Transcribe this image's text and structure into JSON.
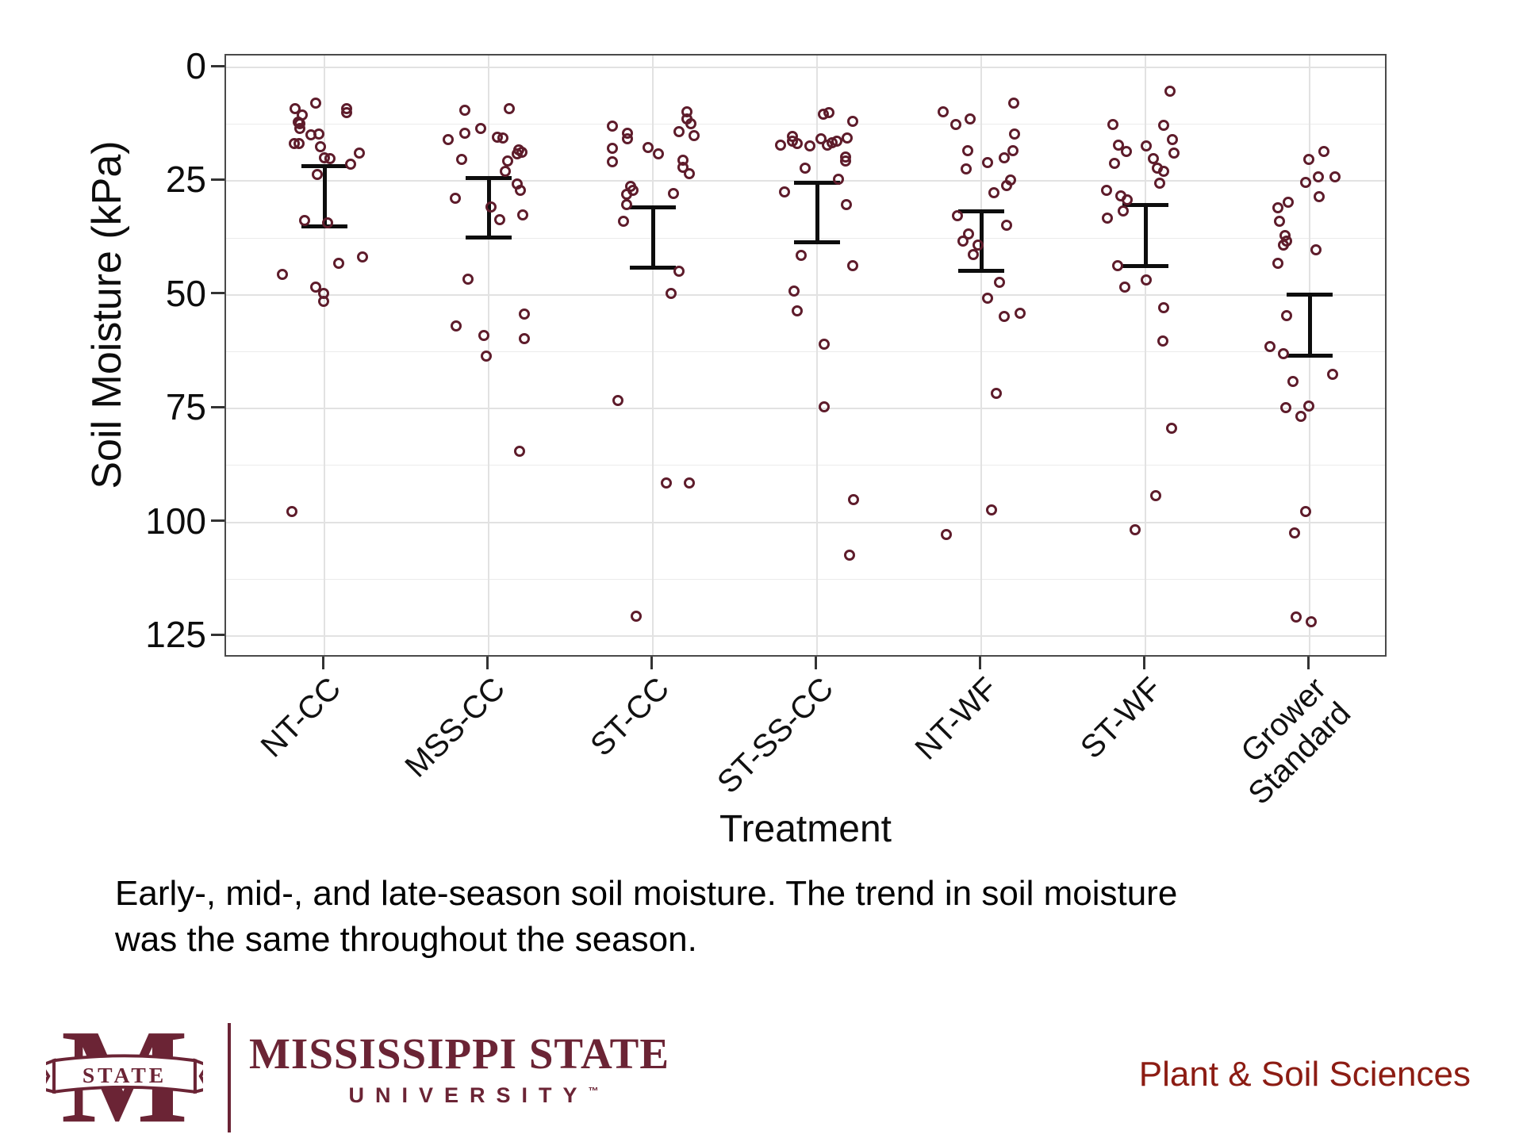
{
  "chart_data": {
    "type": "scatter",
    "title": "",
    "xlabel": "Treatment",
    "ylabel": "Soil Moisture (kPa)",
    "y_axis": {
      "ticks": [
        0,
        25,
        50,
        75,
        100,
        125
      ],
      "minor_step": 12.5,
      "range": [
        0,
        130
      ],
      "reversed": true,
      "unit": "kPa"
    },
    "grid": {
      "major_color": "#e2e2e2",
      "minor_color": "#ebebeb"
    },
    "point_color": "#5e1c2b",
    "errorbar_color": "#0d0d0d",
    "jitter_note": "points stored as [x_offset_px_from_column_center, soil_moisture_kPa]",
    "treatments": [
      {
        "label": "NT-CC",
        "errorbar": {
          "low": 21.7,
          "high": 35.0
        },
        "points": [
          [
            -11,
            7.8
          ],
          [
            -37,
            9.0
          ],
          [
            28,
            9.0
          ],
          [
            28,
            10.0
          ],
          [
            -28,
            10.4
          ],
          [
            -33,
            12.0
          ],
          [
            -31,
            12.3
          ],
          [
            -31,
            13.4
          ],
          [
            -7,
            14.6
          ],
          [
            -17,
            14.8
          ],
          [
            -38,
            16.7
          ],
          [
            -32,
            16.7
          ],
          [
            -5,
            17.4
          ],
          [
            44,
            18.9
          ],
          [
            0,
            19.8
          ],
          [
            7,
            20.0
          ],
          [
            33,
            21.2
          ],
          [
            -9,
            23.6
          ],
          [
            -25,
            33.7
          ],
          [
            4,
            34.1
          ],
          [
            48,
            41.6
          ],
          [
            18,
            43.0
          ],
          [
            -53,
            45.5
          ],
          [
            -11,
            48.3
          ],
          [
            -1,
            49.7
          ],
          [
            -1,
            51.5
          ],
          [
            -41,
            97.7
          ]
        ]
      },
      {
        "label": "MSS-CC",
        "errorbar": {
          "low": 24.4,
          "high": 37.4
        },
        "points": [
          [
            26,
            9.0
          ],
          [
            -30,
            9.5
          ],
          [
            -10,
            13.4
          ],
          [
            -30,
            14.5
          ],
          [
            11,
            15.3
          ],
          [
            18,
            15.6
          ],
          [
            -51,
            15.8
          ],
          [
            38,
            18.1
          ],
          [
            42,
            18.6
          ],
          [
            36,
            19.0
          ],
          [
            -34,
            20.3
          ],
          [
            24,
            20.5
          ],
          [
            21,
            22.9
          ],
          [
            36,
            25.7
          ],
          [
            40,
            27.0
          ],
          [
            -42,
            28.7
          ],
          [
            3,
            30.6
          ],
          [
            43,
            32.5
          ],
          [
            14,
            33.5
          ],
          [
            -26,
            46.5
          ],
          [
            45,
            54.3
          ],
          [
            -41,
            56.9
          ],
          [
            -6,
            59.0
          ],
          [
            45,
            59.7
          ],
          [
            -3,
            63.5
          ],
          [
            39,
            84.3
          ]
        ]
      },
      {
        "label": "ST-CC",
        "errorbar": {
          "low": 30.8,
          "high": 44.1
        },
        "points": [
          [
            43,
            9.7
          ],
          [
            43,
            11.4
          ],
          [
            48,
            12.4
          ],
          [
            -51,
            12.9
          ],
          [
            33,
            14.1
          ],
          [
            -32,
            14.5
          ],
          [
            52,
            15.0
          ],
          [
            -32,
            15.7
          ],
          [
            -6,
            17.6
          ],
          [
            -51,
            17.8
          ],
          [
            7,
            19.0
          ],
          [
            38,
            20.4
          ],
          [
            -51,
            20.7
          ],
          [
            38,
            21.9
          ],
          [
            46,
            23.3
          ],
          [
            -28,
            26.2
          ],
          [
            -25,
            27.0
          ],
          [
            26,
            27.8
          ],
          [
            -33,
            27.9
          ],
          [
            -33,
            30.2
          ],
          [
            -37,
            33.8
          ],
          [
            33,
            44.8
          ],
          [
            23,
            49.7
          ],
          [
            -44,
            73.3
          ],
          [
            17,
            91.4
          ],
          [
            46,
            91.4
          ],
          [
            -21,
            120.7
          ]
        ]
      },
      {
        "label": "ST-SS-CC",
        "errorbar": {
          "low": 25.4,
          "high": 38.4
        },
        "points": [
          [
            15,
            9.9
          ],
          [
            8,
            10.2
          ],
          [
            45,
            11.9
          ],
          [
            -31,
            15.1
          ],
          [
            38,
            15.5
          ],
          [
            5,
            15.7
          ],
          [
            -31,
            16.2
          ],
          [
            25,
            16.2
          ],
          [
            19,
            16.6
          ],
          [
            -25,
            16.8
          ],
          [
            -46,
            17.1
          ],
          [
            13,
            17.1
          ],
          [
            -9,
            17.2
          ],
          [
            36,
            19.7
          ],
          [
            36,
            20.5
          ],
          [
            -15,
            22.2
          ],
          [
            27,
            24.6
          ],
          [
            -41,
            27.4
          ],
          [
            37,
            30.2
          ],
          [
            -20,
            41.4
          ],
          [
            45,
            43.5
          ],
          [
            -29,
            49.1
          ],
          [
            -25,
            53.6
          ],
          [
            9,
            60.8
          ],
          [
            9,
            74.6
          ],
          [
            46,
            95.0
          ],
          [
            41,
            107.3
          ]
        ]
      },
      {
        "label": "NT-WF",
        "errorbar": {
          "low": 31.7,
          "high": 44.7
        },
        "points": [
          [
            41,
            7.9
          ],
          [
            -48,
            9.7
          ],
          [
            -14,
            11.4
          ],
          [
            -32,
            12.5
          ],
          [
            42,
            14.7
          ],
          [
            -17,
            18.3
          ],
          [
            40,
            18.3
          ],
          [
            29,
            19.8
          ],
          [
            8,
            20.9
          ],
          [
            -19,
            22.4
          ],
          [
            37,
            24.8
          ],
          [
            32,
            25.9
          ],
          [
            16,
            27.6
          ],
          [
            -30,
            32.6
          ],
          [
            32,
            34.7
          ],
          [
            -16,
            36.6
          ],
          [
            -23,
            38.1
          ],
          [
            -4,
            39.0
          ],
          [
            -10,
            41.2
          ],
          [
            23,
            47.2
          ],
          [
            8,
            50.7
          ],
          [
            49,
            54.1
          ],
          [
            29,
            54.7
          ],
          [
            19,
            71.7
          ],
          [
            13,
            97.2
          ],
          [
            -44,
            102.6
          ]
        ]
      },
      {
        "label": "ST-WF",
        "errorbar": {
          "low": 30.3,
          "high": 43.7
        },
        "points": [
          [
            31,
            5.2
          ],
          [
            -41,
            12.5
          ],
          [
            23,
            12.8
          ],
          [
            34,
            15.8
          ],
          [
            -34,
            17.1
          ],
          [
            1,
            17.2
          ],
          [
            -24,
            18.4
          ],
          [
            36,
            18.8
          ],
          [
            10,
            20.0
          ],
          [
            -39,
            21.1
          ],
          [
            15,
            22.2
          ],
          [
            23,
            22.8
          ],
          [
            18,
            25.4
          ],
          [
            -49,
            27.0
          ],
          [
            -31,
            28.3
          ],
          [
            -23,
            29.1
          ],
          [
            -28,
            31.5
          ],
          [
            -48,
            33.2
          ],
          [
            -35,
            43.5
          ],
          [
            1,
            46.7
          ],
          [
            -26,
            48.3
          ],
          [
            23,
            52.8
          ],
          [
            22,
            60.2
          ],
          [
            33,
            79.3
          ],
          [
            13,
            94.1
          ],
          [
            -13,
            101.7
          ]
        ]
      },
      {
        "label": "Grower Standard",
        "label_lines": [
          "Grower",
          "Standard"
        ],
        "errorbar": {
          "low": 50.0,
          "high": 63.4
        },
        "points": [
          [
            18,
            18.4
          ],
          [
            -1,
            20.3
          ],
          [
            32,
            24.0
          ],
          [
            11,
            24.1
          ],
          [
            -5,
            25.3
          ],
          [
            12,
            28.4
          ],
          [
            -27,
            29.7
          ],
          [
            -40,
            30.9
          ],
          [
            -38,
            33.9
          ],
          [
            -31,
            36.9
          ],
          [
            -29,
            38.1
          ],
          [
            -33,
            39.0
          ],
          [
            8,
            40.1
          ],
          [
            -40,
            43.1
          ],
          [
            -29,
            54.6
          ],
          [
            -50,
            61.4
          ],
          [
            -33,
            62.9
          ],
          [
            29,
            67.4
          ],
          [
            -21,
            69.0
          ],
          [
            -1,
            74.4
          ],
          [
            -30,
            74.8
          ],
          [
            -11,
            76.7
          ],
          [
            -5,
            97.7
          ],
          [
            -19,
            102.4
          ],
          [
            -17,
            120.9
          ],
          [
            2,
            121.8
          ]
        ]
      }
    ]
  },
  "caption": {
    "lines": [
      "Early-, mid-, and late-season soil moisture. The trend in soil moisture",
      "was the same throughout the season."
    ]
  },
  "footer": {
    "logo": {
      "m_letter": "M",
      "banner_text": "STATE",
      "wordmark": "MISSISSIPPI STATE",
      "subtext": "UNIVERSITY",
      "trademark": "™",
      "maroon": "#6b2435"
    },
    "department": "Plant & Soil Sciences",
    "department_color": "#8c1c13"
  }
}
